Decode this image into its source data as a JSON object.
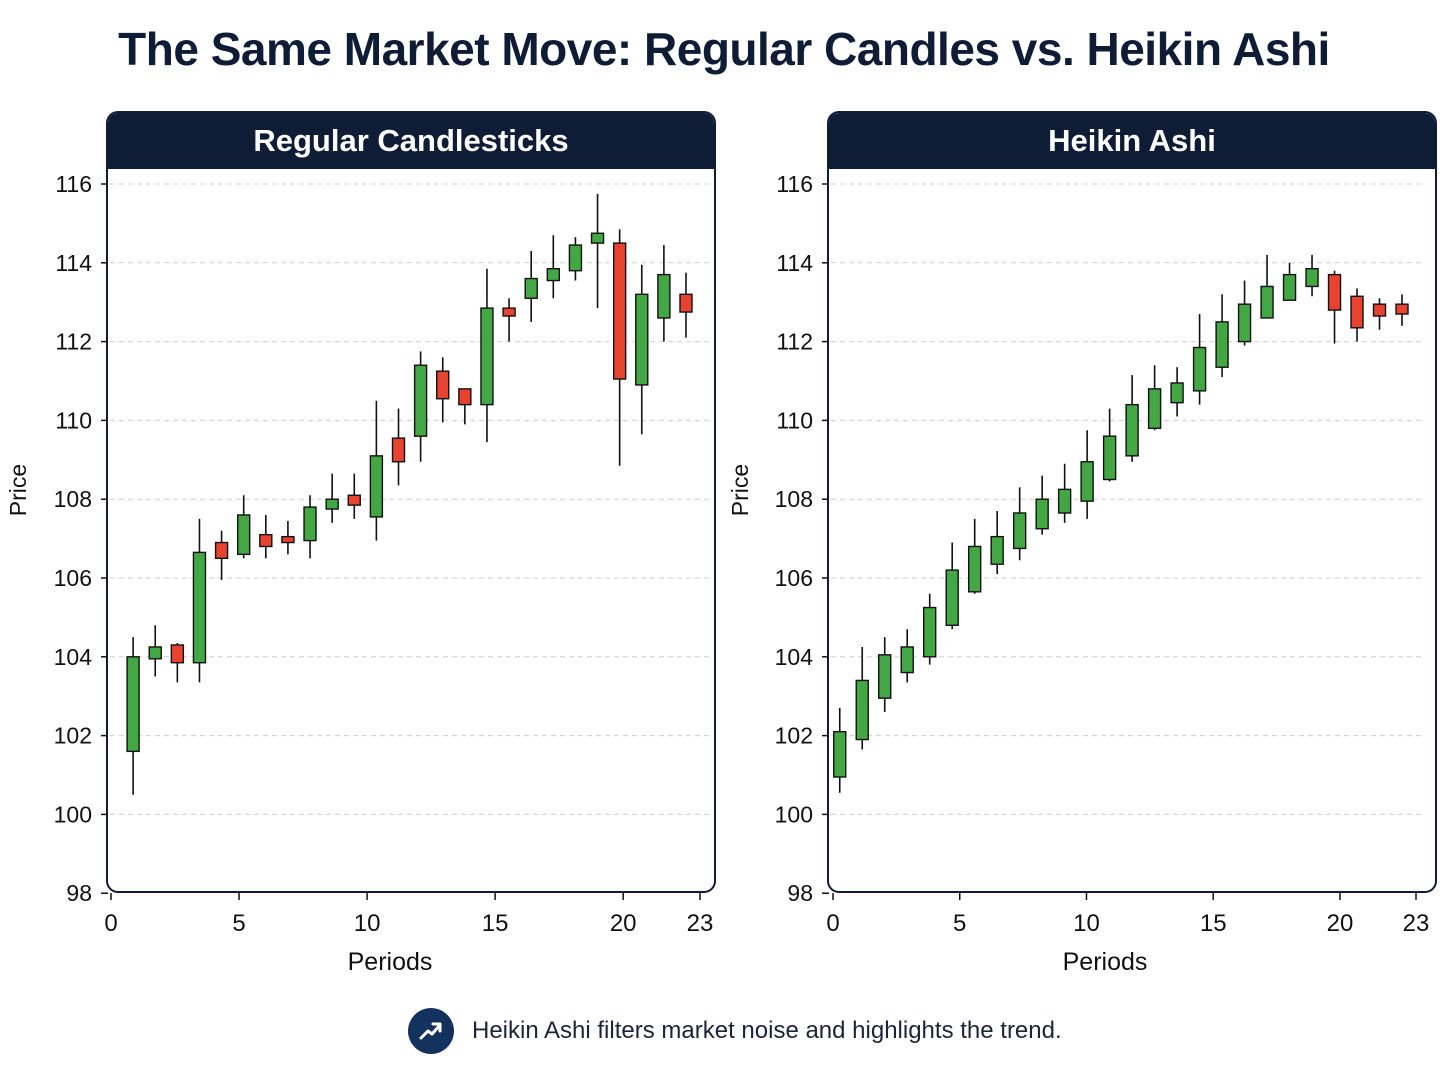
{
  "title": "The Same Market Move: Regular Candles vs. Heikin Ashi",
  "footnote": {
    "icon": "trend-up-icon",
    "text": "Heikin Ashi filters market noise and highlights the trend."
  },
  "colors": {
    "header_bg": "#0f1c36",
    "bull": "#43a843",
    "bear": "#e8432f",
    "badge": "#13325e"
  },
  "chart_data": [
    {
      "type": "candlestick",
      "title": "Regular Candlesticks",
      "xlabel": "Periods",
      "ylabel": "Price",
      "xlim": [
        0,
        23
      ],
      "ylim": [
        98,
        116.5
      ],
      "xticks": [
        0,
        5,
        10,
        15,
        20,
        23
      ],
      "yticks": [
        98,
        100,
        102,
        104,
        106,
        108,
        110,
        112,
        114,
        116
      ],
      "grid": "horizontal-dashed",
      "candles": [
        {
          "x": 1,
          "open": 101.6,
          "high": 104.5,
          "low": 100.5,
          "close": 104.0
        },
        {
          "x": 2,
          "open": 103.95,
          "high": 104.8,
          "low": 103.5,
          "close": 104.25
        },
        {
          "x": 3,
          "open": 104.3,
          "high": 104.35,
          "low": 103.35,
          "close": 103.85
        },
        {
          "x": 4,
          "open": 103.85,
          "high": 107.5,
          "low": 103.35,
          "close": 106.65
        },
        {
          "x": 5,
          "open": 106.9,
          "high": 107.2,
          "low": 105.95,
          "close": 106.5
        },
        {
          "x": 6,
          "open": 106.6,
          "high": 108.1,
          "low": 106.5,
          "close": 107.6
        },
        {
          "x": 7,
          "open": 107.1,
          "high": 107.6,
          "low": 106.5,
          "close": 106.8
        },
        {
          "x": 8,
          "open": 107.05,
          "high": 107.45,
          "low": 106.6,
          "close": 106.9
        },
        {
          "x": 9,
          "open": 106.95,
          "high": 108.1,
          "low": 106.5,
          "close": 107.8
        },
        {
          "x": 10,
          "open": 107.75,
          "high": 108.65,
          "low": 107.4,
          "close": 108.0
        },
        {
          "x": 11,
          "open": 108.1,
          "high": 108.65,
          "low": 107.5,
          "close": 107.85
        },
        {
          "x": 12,
          "open": 107.55,
          "high": 110.5,
          "low": 106.95,
          "close": 109.1
        },
        {
          "x": 13,
          "open": 109.55,
          "high": 110.3,
          "low": 108.35,
          "close": 108.95
        },
        {
          "x": 14,
          "open": 109.6,
          "high": 111.75,
          "low": 108.95,
          "close": 111.4
        },
        {
          "x": 15,
          "open": 111.25,
          "high": 111.6,
          "low": 109.95,
          "close": 110.55
        },
        {
          "x": 16,
          "open": 110.8,
          "high": 110.8,
          "low": 109.9,
          "close": 110.4
        },
        {
          "x": 17,
          "open": 110.4,
          "high": 113.85,
          "low": 109.45,
          "close": 112.85
        },
        {
          "x": 18,
          "open": 112.85,
          "high": 113.1,
          "low": 112.0,
          "close": 112.65
        },
        {
          "x": 19,
          "open": 113.1,
          "high": 114.3,
          "low": 112.5,
          "close": 113.6
        },
        {
          "x": 20,
          "open": 113.55,
          "high": 114.7,
          "low": 113.1,
          "close": 113.85
        },
        {
          "x": 21,
          "open": 113.8,
          "high": 114.65,
          "low": 113.55,
          "close": 114.45
        },
        {
          "x": 22,
          "open": 114.5,
          "high": 115.75,
          "low": 112.85,
          "close": 114.75
        },
        {
          "x": 23,
          "open": 114.5,
          "high": 114.85,
          "low": 108.85,
          "close": 111.05
        },
        {
          "x": 24,
          "open": 110.9,
          "high": 113.95,
          "low": 109.65,
          "close": 113.2
        },
        {
          "x": 25,
          "open": 112.6,
          "high": 114.45,
          "low": 112.0,
          "close": 113.7
        },
        {
          "x": 26,
          "open": 113.2,
          "high": 113.75,
          "low": 112.1,
          "close": 112.75
        }
      ]
    },
    {
      "type": "candlestick",
      "title": "Heikin Ashi",
      "xlabel": "Periods",
      "ylabel": "Price",
      "xlim": [
        0,
        23
      ],
      "ylim": [
        98,
        116.5
      ],
      "xticks": [
        0,
        5,
        10,
        15,
        20,
        23
      ],
      "yticks": [
        98,
        100,
        102,
        104,
        106,
        108,
        110,
        112,
        114,
        116
      ],
      "grid": "horizontal-dashed",
      "candles": [
        {
          "x": 0.3,
          "open": 100.95,
          "high": 102.7,
          "low": 100.55,
          "close": 102.1
        },
        {
          "x": 1.3,
          "open": 101.9,
          "high": 104.25,
          "low": 101.65,
          "close": 103.4
        },
        {
          "x": 2.3,
          "open": 102.95,
          "high": 104.5,
          "low": 102.6,
          "close": 104.05
        },
        {
          "x": 3.3,
          "open": 103.6,
          "high": 104.7,
          "low": 103.35,
          "close": 104.25
        },
        {
          "x": 4.3,
          "open": 104.0,
          "high": 105.6,
          "low": 103.8,
          "close": 105.25
        },
        {
          "x": 5.3,
          "open": 104.8,
          "high": 106.9,
          "low": 104.7,
          "close": 106.2
        },
        {
          "x": 6.3,
          "open": 105.65,
          "high": 107.5,
          "low": 105.6,
          "close": 106.8
        },
        {
          "x": 7.3,
          "open": 106.35,
          "high": 107.7,
          "low": 106.1,
          "close": 107.05
        },
        {
          "x": 8.3,
          "open": 106.75,
          "high": 108.3,
          "low": 106.45,
          "close": 107.65
        },
        {
          "x": 9.3,
          "open": 107.25,
          "high": 108.6,
          "low": 107.1,
          "close": 108.0
        },
        {
          "x": 10.3,
          "open": 107.65,
          "high": 108.9,
          "low": 107.4,
          "close": 108.25
        },
        {
          "x": 11.3,
          "open": 107.95,
          "high": 109.75,
          "low": 107.5,
          "close": 108.95
        },
        {
          "x": 12.3,
          "open": 108.5,
          "high": 110.3,
          "low": 108.45,
          "close": 109.6
        },
        {
          "x": 13.3,
          "open": 109.1,
          "high": 111.15,
          "low": 108.95,
          "close": 110.4
        },
        {
          "x": 14.3,
          "open": 109.8,
          "high": 111.4,
          "low": 109.75,
          "close": 110.8
        },
        {
          "x": 15.3,
          "open": 110.45,
          "high": 111.35,
          "low": 110.1,
          "close": 110.95
        },
        {
          "x": 16.3,
          "open": 110.75,
          "high": 112.7,
          "low": 110.4,
          "close": 111.85
        },
        {
          "x": 17.3,
          "open": 111.35,
          "high": 113.2,
          "low": 111.1,
          "close": 112.5
        },
        {
          "x": 18.3,
          "open": 112.0,
          "high": 113.55,
          "low": 111.9,
          "close": 112.95
        },
        {
          "x": 19.3,
          "open": 112.6,
          "high": 114.2,
          "low": 112.6,
          "close": 113.4
        },
        {
          "x": 20.3,
          "open": 113.05,
          "high": 114.0,
          "low": 113.05,
          "close": 113.7
        },
        {
          "x": 21.3,
          "open": 113.4,
          "high": 114.2,
          "low": 113.15,
          "close": 113.85
        },
        {
          "x": 22.3,
          "open": 113.7,
          "high": 113.8,
          "low": 111.95,
          "close": 112.8
        },
        {
          "x": 23.3,
          "open": 113.15,
          "high": 113.35,
          "low": 112.0,
          "close": 112.35
        },
        {
          "x": 24.3,
          "open": 112.95,
          "high": 113.1,
          "low": 112.3,
          "close": 112.65
        },
        {
          "x": 25.3,
          "open": 112.95,
          "high": 113.2,
          "low": 112.4,
          "close": 112.7
        }
      ]
    }
  ]
}
